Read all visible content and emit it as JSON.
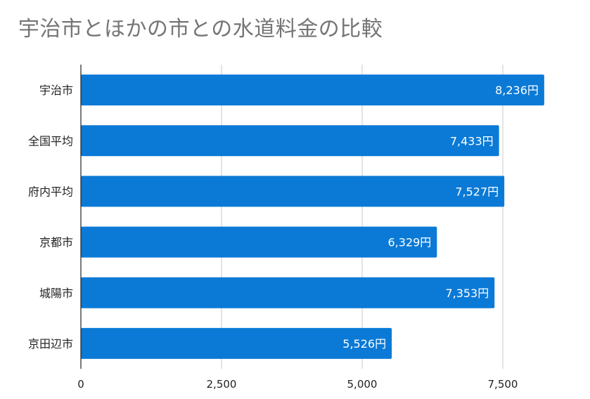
{
  "chart_data": {
    "type": "bar",
    "orientation": "horizontal",
    "title": "宇治市とほかの市との水道料金の比較",
    "categories": [
      "宇治市",
      "全国平均",
      "府内平均",
      "京都市",
      "城陽市",
      "京田辺市"
    ],
    "values": [
      8236,
      7433,
      7527,
      6329,
      7353,
      5526
    ],
    "value_labels": [
      "8,236円",
      "7,433円",
      "7,527円",
      "6,329円",
      "7,353円",
      "5,526円"
    ],
    "xticks": [
      0,
      2500,
      5000,
      7500
    ],
    "xtick_labels": [
      "0",
      "2,500",
      "5,000",
      "7,500"
    ],
    "xlim": [
      0,
      8400
    ],
    "grid": true,
    "legend": "none",
    "bar_color": "#0b7ad6",
    "grid_color": "#c8c8c8",
    "axis_color": "#222222"
  }
}
